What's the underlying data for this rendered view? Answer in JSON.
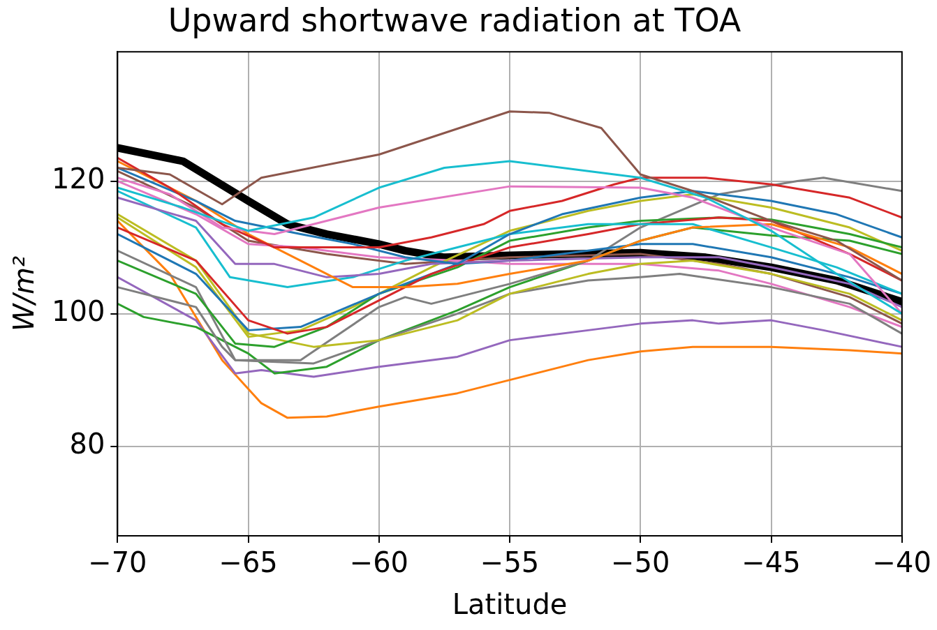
{
  "chart_data": {
    "type": "line",
    "title": "Upward shortwave radiation at TOA",
    "xlabel": "Latitude",
    "ylabel": "W/m²",
    "xlim": [
      -70,
      -40
    ],
    "xticks": [
      {
        "value": -70,
        "label": "−70"
      },
      {
        "value": -65,
        "label": "−65"
      },
      {
        "value": -60,
        "label": "−60"
      },
      {
        "value": -55,
        "label": "−55"
      },
      {
        "value": -50,
        "label": "−50"
      },
      {
        "value": -45,
        "label": "−45"
      },
      {
        "value": -40,
        "label": "−40"
      }
    ],
    "ylim": [
      66.5,
      139.5
    ],
    "yticks": [
      80,
      100,
      120
    ],
    "grid": true,
    "legend": false,
    "marker": "none",
    "line_style": "solid",
    "series": [
      {
        "color": "#8c564b",
        "x": [
          -70,
          -68,
          -66,
          -64.5,
          -60,
          -55,
          -53.5,
          -51.5,
          -50,
          -48,
          -45,
          -42.5,
          -40
        ],
        "values": [
          122,
          121,
          116.5,
          120.5,
          124,
          130.5,
          130.3,
          128,
          121,
          118.5,
          114,
          111,
          105
        ]
      },
      {
        "color": "#17becf",
        "x": [
          -70,
          -67.5,
          -65,
          -62.5,
          -60,
          -57.5,
          -55,
          -52,
          -50,
          -47.5,
          -45,
          -42.5,
          -40
        ],
        "values": [
          119,
          116,
          112.5,
          114.5,
          119,
          122,
          123,
          121.5,
          120.5,
          117.5,
          112.5,
          106,
          100
        ]
      },
      {
        "color": "#e377c2",
        "x": [
          -70,
          -68,
          -66,
          -64,
          -62,
          -60,
          -55,
          -50,
          -48,
          -45,
          -42,
          -40
        ],
        "values": [
          120.5,
          118,
          113,
          112,
          114,
          116,
          119.2,
          119,
          117.5,
          113,
          109,
          100
        ]
      },
      {
        "color": "#d62728",
        "x": [
          -70,
          -68,
          -66,
          -64,
          -62,
          -60,
          -58,
          -56,
          -55,
          -53,
          -51,
          -50,
          -47.5,
          -45,
          -42,
          -40
        ],
        "values": [
          123.5,
          119,
          113.5,
          110,
          110,
          110,
          111.5,
          113.5,
          115.5,
          117,
          119.5,
          120.5,
          120.5,
          119.5,
          117.5,
          114.5
        ]
      },
      {
        "color": "#1f77b4",
        "x": [
          -70,
          -67,
          -65.5,
          -63,
          -61,
          -59,
          -57,
          -55,
          -53,
          -50,
          -48,
          -45,
          -42.5,
          -40
        ],
        "values": [
          122,
          117,
          114,
          112,
          110.5,
          108.5,
          107.5,
          112,
          115,
          117.5,
          118.5,
          117,
          115,
          111.5
        ]
      },
      {
        "color": "#ff7f0e",
        "x": [
          -70,
          -67,
          -65,
          -63,
          -61,
          -59,
          -57,
          -55,
          -52,
          -50,
          -48,
          -45,
          -42,
          -40
        ],
        "values": [
          123,
          117,
          112,
          108,
          104,
          104,
          104.5,
          106,
          108,
          111,
          113,
          113.5,
          110,
          106
        ]
      },
      {
        "color": "#9467bd",
        "x": [
          -70,
          -67,
          -65.5,
          -64,
          -62,
          -60,
          -58,
          -55,
          -50,
          -47,
          -45,
          -42,
          -40
        ],
        "values": [
          117.5,
          114,
          107.5,
          107.5,
          105.5,
          106,
          107.5,
          108,
          108.5,
          108.5,
          107,
          104.5,
          101
        ]
      },
      {
        "color": "#17becf",
        "x": [
          -70,
          -67,
          -65.7,
          -63.5,
          -61,
          -59,
          -57,
          -55,
          -52,
          -50,
          -48,
          -45,
          -42.5,
          -40
        ],
        "values": [
          118.5,
          113,
          105.5,
          104,
          105.5,
          108,
          110,
          112,
          113.5,
          113.5,
          113.5,
          110,
          107,
          103
        ]
      },
      {
        "color": "#d62728",
        "x": [
          -70,
          -67,
          -65,
          -63.5,
          -62,
          -60,
          -58,
          -55,
          -52,
          -50,
          -47,
          -45,
          -42,
          -40
        ],
        "values": [
          113,
          108,
          99,
          97,
          98,
          102,
          106,
          110,
          112,
          113.5,
          114.5,
          114,
          109,
          105
        ]
      },
      {
        "color": "#1f77b4",
        "x": [
          -70,
          -67,
          -65,
          -63,
          -60,
          -57,
          -55,
          -52,
          -50,
          -48,
          -45,
          -42,
          -40
        ],
        "values": [
          112,
          106,
          97.5,
          98,
          103,
          107.5,
          108,
          109.5,
          110.5,
          110.5,
          108.5,
          105.5,
          103
        ]
      },
      {
        "color": "#2ca02c",
        "x": [
          -70,
          -67,
          -65.5,
          -64,
          -62,
          -60,
          -57,
          -55,
          -52,
          -50,
          -47,
          -45,
          -42,
          -40
        ],
        "values": [
          108,
          103,
          95.5,
          95,
          98,
          103,
          107,
          111,
          113,
          114,
          114.5,
          114.2,
          112,
          110
        ]
      },
      {
        "color": "#bcbd22",
        "x": [
          -70,
          -67,
          -65,
          -63,
          -61,
          -58,
          -55,
          -52,
          -50,
          -48,
          -45,
          -42,
          -40
        ],
        "values": [
          114.5,
          107,
          96.5,
          97.5,
          101,
          107,
          112.5,
          115.5,
          117,
          118,
          116,
          113,
          109.5
        ]
      },
      {
        "color": "#bcbd22",
        "x": [
          -70,
          -67,
          -65,
          -62.5,
          -60,
          -57,
          -55,
          -52,
          -50,
          -48,
          -45,
          -42,
          -40
        ],
        "values": [
          115,
          108,
          97,
          95,
          96,
          99,
          103,
          106,
          107.5,
          108,
          106,
          103,
          99
        ]
      },
      {
        "color": "#7f7f7f",
        "x": [
          -70,
          -67,
          -65.5,
          -63,
          -60,
          -59,
          -58,
          -55,
          -52,
          -50,
          -47,
          -44,
          -43,
          -40
        ],
        "values": [
          109.5,
          104,
          93,
          93,
          101,
          102.5,
          101.5,
          104.5,
          108,
          113,
          118,
          120,
          120.5,
          118.5
        ]
      },
      {
        "color": "#7f7f7f",
        "x": [
          -70,
          -67,
          -66,
          -65.5,
          -62.5,
          -60,
          -57,
          -55,
          -52,
          -50,
          -48.5,
          -45,
          -42,
          -40
        ],
        "values": [
          104,
          101,
          95,
          93,
          92.5,
          96,
          100,
          103,
          105,
          105.5,
          106,
          104,
          101.5,
          97
        ]
      },
      {
        "color": "#2ca02c",
        "x": [
          -70,
          -69,
          -67,
          -65,
          -64,
          -62,
          -60,
          -57,
          -55,
          -52,
          -50,
          -48,
          -45,
          -42,
          -40
        ],
        "values": [
          101.5,
          99.5,
          98,
          94,
          91,
          92,
          96,
          100.5,
          104,
          108,
          111,
          113,
          111.8,
          111,
          109
        ]
      },
      {
        "color": "#9467bd",
        "x": [
          -70,
          -67,
          -65.5,
          -64.5,
          -62.5,
          -60,
          -57,
          -55,
          -52,
          -50,
          -48,
          -47,
          -45,
          -43,
          -40
        ],
        "values": [
          105.5,
          99,
          91,
          91.5,
          90.5,
          92,
          93.5,
          96,
          97.5,
          98.5,
          99,
          98.5,
          99,
          97.5,
          95
        ]
      },
      {
        "color": "#ff7f0e",
        "x": [
          -70,
          -68,
          -66,
          -64.5,
          -63.5,
          -62,
          -60,
          -57,
          -55,
          -52,
          -50,
          -48,
          -45,
          -42,
          -40
        ],
        "values": [
          114,
          106,
          93,
          86.5,
          84.3,
          84.5,
          86,
          88,
          90,
          93,
          94.3,
          95,
          95,
          94.5,
          94
        ]
      },
      {
        "color": "#e377c2",
        "x": [
          -70,
          -67,
          -65,
          -63,
          -60,
          -57,
          -55,
          -50,
          -47,
          -45,
          -42,
          -40
        ],
        "values": [
          120,
          115,
          110.5,
          110,
          108.5,
          108,
          107.5,
          107.5,
          106.5,
          104.5,
          101,
          98
        ]
      },
      {
        "color": "#8c564b",
        "x": [
          -70,
          -67,
          -65,
          -62,
          -59,
          -55,
          -50,
          -47,
          -45,
          -42,
          -40
        ],
        "values": [
          121.5,
          116,
          111,
          109,
          107.5,
          108.5,
          109,
          107.5,
          106,
          102.5,
          98.5
        ]
      },
      {
        "color": "#000000",
        "x": [
          -70,
          -67.5,
          -65,
          -63.5,
          -62,
          -60,
          -59,
          -57.5,
          -55,
          -52.5,
          -50,
          -47.5,
          -45,
          -42.5,
          -40
        ],
        "values": [
          125,
          123,
          117,
          113.5,
          112,
          110.5,
          109.5,
          108.5,
          108.8,
          109,
          109.2,
          108.5,
          107,
          105,
          101.8
        ]
      }
    ]
  }
}
